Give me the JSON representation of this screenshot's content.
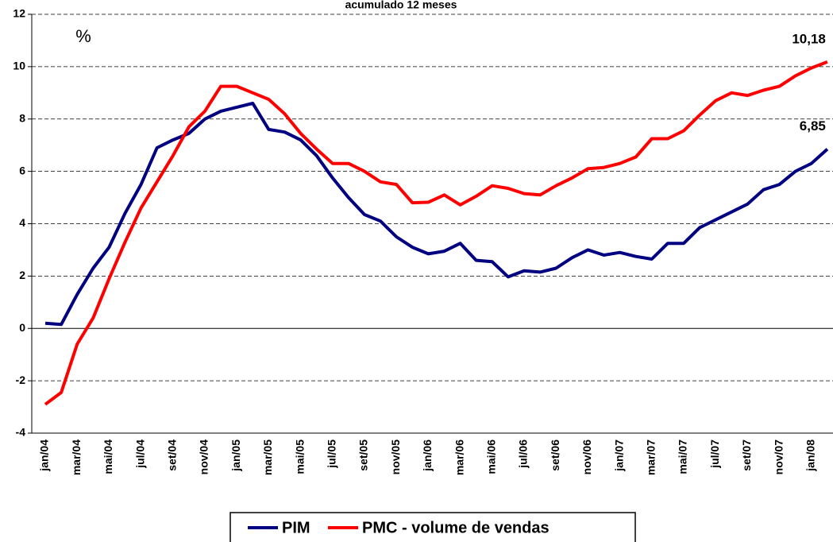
{
  "chart_data": {
    "type": "line",
    "title": "acumulado 12 meses",
    "unit_label": "%",
    "categories": [
      "jan/04",
      null,
      "mar/04",
      null,
      "mai/04",
      null,
      "jul/04",
      null,
      "set/04",
      null,
      "nov/04",
      null,
      "jan/05",
      null,
      "mar/05",
      null,
      "mai/05",
      null,
      "jul/05",
      null,
      "set/05",
      null,
      "nov/05",
      null,
      "jan/06",
      null,
      "mar/06",
      null,
      "mai/06",
      null,
      "jul/06",
      null,
      "set/06",
      null,
      "nov/06",
      null,
      "jan/07",
      null,
      "mar/07",
      null,
      "mai/07",
      null,
      "jul/07",
      null,
      "set/07",
      null,
      "nov/07",
      null,
      "jan/08",
      null
    ],
    "series": [
      {
        "name": "PIM",
        "color": "#000080",
        "values": [
          0.2,
          0.15,
          1.3,
          2.3,
          3.1,
          4.4,
          5.5,
          6.9,
          7.2,
          7.45,
          8.0,
          8.3,
          8.45,
          8.6,
          7.6,
          7.5,
          7.2,
          6.6,
          5.75,
          5.0,
          4.35,
          4.1,
          3.5,
          3.1,
          2.85,
          2.95,
          3.25,
          2.6,
          2.55,
          1.97,
          2.2,
          2.15,
          2.3,
          2.7,
          3.0,
          2.8,
          2.9,
          2.75,
          2.65,
          3.25,
          3.25,
          3.85,
          4.15,
          4.45,
          4.75,
          5.3,
          5.5,
          6.0,
          6.3,
          6.85
        ],
        "value_labels": [
          null,
          null,
          null,
          null,
          null,
          null,
          null,
          null,
          null,
          null,
          null,
          null,
          null,
          null,
          null,
          null,
          null,
          null,
          null,
          null,
          null,
          null,
          null,
          null,
          null,
          null,
          null,
          null,
          null,
          null,
          null,
          null,
          null,
          null,
          null,
          null,
          null,
          null,
          null,
          null,
          null,
          null,
          null,
          null,
          null,
          null,
          null,
          null,
          null,
          "6,85"
        ]
      },
      {
        "name": "PMC - volume de vendas",
        "color": "#ff0000",
        "values": [
          -2.9,
          -2.45,
          -0.6,
          0.4,
          1.9,
          3.3,
          4.6,
          5.6,
          6.6,
          7.7,
          8.3,
          9.25,
          9.25,
          9.0,
          8.75,
          8.2,
          7.45,
          6.85,
          6.3,
          6.3,
          6.0,
          5.6,
          5.5,
          4.8,
          4.82,
          5.1,
          4.72,
          5.05,
          5.45,
          5.35,
          5.15,
          5.1,
          5.45,
          5.75,
          6.1,
          6.15,
          6.3,
          6.55,
          7.25,
          7.25,
          7.55,
          8.15,
          8.7,
          9.0,
          8.9,
          9.1,
          9.25,
          9.65,
          9.95,
          10.18
        ],
        "value_labels": [
          null,
          null,
          null,
          null,
          null,
          null,
          null,
          null,
          null,
          null,
          null,
          null,
          null,
          null,
          null,
          null,
          null,
          null,
          null,
          null,
          null,
          null,
          null,
          null,
          null,
          null,
          null,
          null,
          null,
          null,
          null,
          null,
          null,
          null,
          null,
          null,
          null,
          null,
          null,
          null,
          null,
          null,
          null,
          null,
          null,
          null,
          null,
          null,
          null,
          "10,18"
        ]
      }
    ],
    "ylim": [
      -4,
      12
    ],
    "yticks": [
      -4,
      -2,
      0,
      2,
      4,
      6,
      8,
      10,
      12
    ],
    "grid": true
  }
}
